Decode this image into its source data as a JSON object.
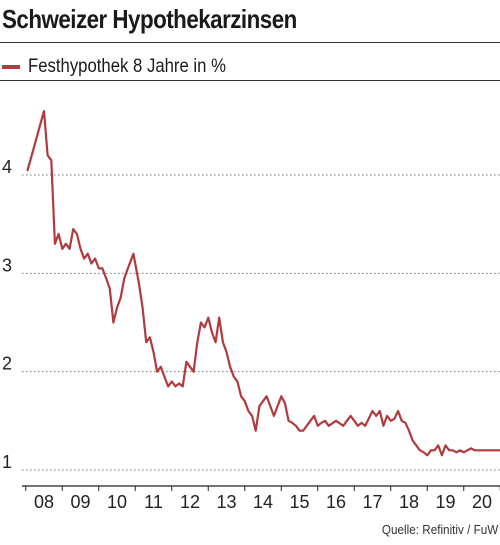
{
  "title": "Schweizer Hypothekarzinsen",
  "source": "Quelle: Refinitiv / FuW",
  "colors": {
    "series": "#b03a3e",
    "grid": "#777777",
    "axis": "#222222"
  },
  "chart_data": {
    "type": "line",
    "title": "Schweizer Hypothekarzinsen",
    "xlabel": "",
    "ylabel": "",
    "x_tick_labels": [
      "08",
      "09",
      "10",
      "11",
      "12",
      "13",
      "14",
      "15",
      "16",
      "17",
      "18",
      "19",
      "20"
    ],
    "y_ticks": [
      1,
      2,
      3,
      4
    ],
    "ylim": [
      0.7,
      4.9
    ],
    "xlim": [
      2007.3,
      2020.7
    ],
    "grid": "horizontal-dotted",
    "legend": "top-left",
    "series": [
      {
        "name": "Festhypothek 8 Jahre in %",
        "x": [
          2007.55,
          2007.7,
          2007.85,
          2008.0,
          2008.1,
          2008.2,
          2008.3,
          2008.4,
          2008.5,
          2008.6,
          2008.7,
          2008.8,
          2008.9,
          2009.0,
          2009.1,
          2009.2,
          2009.3,
          2009.4,
          2009.5,
          2009.6,
          2009.7,
          2009.8,
          2009.9,
          2010.0,
          2010.1,
          2010.2,
          2010.3,
          2010.45,
          2010.6,
          2010.7,
          2010.8,
          2010.9,
          2011.0,
          2011.1,
          2011.2,
          2011.3,
          2011.4,
          2011.5,
          2011.6,
          2011.7,
          2011.8,
          2011.9,
          2012.0,
          2012.1,
          2012.2,
          2012.3,
          2012.4,
          2012.5,
          2012.6,
          2012.7,
          2012.8,
          2012.9,
          2013.0,
          2013.1,
          2013.2,
          2013.3,
          2013.4,
          2013.5,
          2013.6,
          2013.7,
          2013.8,
          2013.9,
          2014.0,
          2014.1,
          2014.2,
          2014.3,
          2014.4,
          2014.5,
          2014.6,
          2014.7,
          2014.8,
          2014.9,
          2015.0,
          2015.1,
          2015.2,
          2015.3,
          2015.4,
          2015.5,
          2015.6,
          2015.7,
          2015.8,
          2016.0,
          2016.2,
          2016.3,
          2016.4,
          2016.5,
          2016.6,
          2016.7,
          2016.8,
          2017.0,
          2017.1,
          2017.2,
          2017.3,
          2017.4,
          2017.5,
          2017.6,
          2017.7,
          2017.8,
          2017.9,
          2018.0,
          2018.1,
          2018.2,
          2018.3,
          2018.4,
          2018.5,
          2018.6,
          2018.7,
          2018.8,
          2018.9,
          2019.0,
          2019.1,
          2019.2,
          2019.3,
          2019.4,
          2019.5,
          2019.6,
          2019.7,
          2019.8,
          2019.9,
          2020.0,
          2020.1,
          2020.2,
          2020.3,
          2020.4,
          2020.5
        ],
        "y": [
          4.05,
          4.25,
          4.45,
          4.65,
          4.2,
          4.15,
          3.3,
          3.4,
          3.25,
          3.3,
          3.25,
          3.45,
          3.4,
          3.25,
          3.15,
          3.2,
          3.1,
          3.15,
          3.05,
          3.05,
          2.95,
          2.85,
          2.5,
          2.65,
          2.75,
          2.95,
          3.05,
          3.2,
          2.9,
          2.65,
          2.3,
          2.35,
          2.2,
          2.0,
          2.05,
          1.95,
          1.85,
          1.9,
          1.85,
          1.88,
          1.85,
          2.1,
          2.05,
          2.0,
          2.3,
          2.5,
          2.45,
          2.55,
          2.4,
          2.3,
          2.55,
          2.3,
          2.2,
          2.05,
          1.95,
          1.9,
          1.75,
          1.7,
          1.6,
          1.55,
          1.4,
          1.65,
          1.7,
          1.75,
          1.65,
          1.55,
          1.65,
          1.75,
          1.68,
          1.5,
          1.48,
          1.45,
          1.4,
          1.4,
          1.45,
          1.5,
          1.55,
          1.45,
          1.48,
          1.5,
          1.45,
          1.5,
          1.45,
          1.5,
          1.55,
          1.5,
          1.45,
          1.48,
          1.45,
          1.6,
          1.55,
          1.6,
          1.45,
          1.55,
          1.5,
          1.52,
          1.6,
          1.5,
          1.48,
          1.4,
          1.3,
          1.25,
          1.2,
          1.18,
          1.15,
          1.2,
          1.2,
          1.25,
          1.15,
          1.25,
          1.2,
          1.2,
          1.18,
          1.2,
          1.18,
          1.2,
          1.22,
          1.2,
          1.2,
          1.2,
          1.2,
          1.2,
          1.2,
          1.2,
          1.2
        ]
      }
    ]
  }
}
